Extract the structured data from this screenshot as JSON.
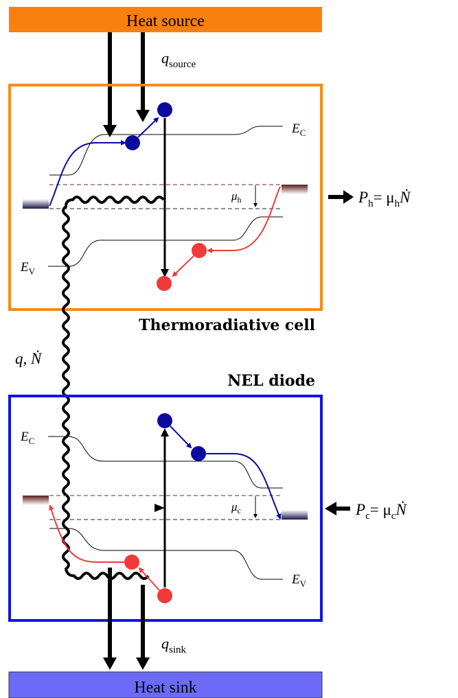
{
  "heat_source": {
    "label": "Heat source",
    "color": "#F97F0F"
  },
  "heat_sink": {
    "label": "Heat sink",
    "color": "#6B6BF8"
  },
  "labels": {
    "q_source": {
      "base": "q",
      "sub": "source"
    },
    "q_sink": {
      "base": "q",
      "sub": "sink"
    },
    "q_ndot": "q, Ṅ",
    "thermoradiative_cell": "Thermoradiative cell",
    "nel_diode": "NEL diode",
    "ec_top": {
      "base": "E",
      "sub": "C"
    },
    "ev_top": {
      "base": "E",
      "sub": "V"
    },
    "ec_bottom": {
      "base": "E",
      "sub": "C"
    },
    "ev_bottom": {
      "base": "E",
      "sub": "V"
    },
    "mu_h": {
      "base": "μ",
      "sub": "h"
    },
    "mu_c": {
      "base": "μ",
      "sub": "c"
    },
    "p_h": {
      "base": "P",
      "sub": "h",
      "rhs": "= μ",
      "rhs_sub": "h",
      "rhs_end": "Ṅ"
    },
    "p_c": {
      "base": "P",
      "sub": "c",
      "rhs": "= μ",
      "rhs_sub": "c",
      "rhs_end": "Ṅ"
    }
  },
  "colors": {
    "tr_cell_border": "#F98A12",
    "nel_border": "#1212E6",
    "electron": "#0A0A9E",
    "hole": "#F03A3A",
    "fermi_dash": "#6E2626"
  }
}
